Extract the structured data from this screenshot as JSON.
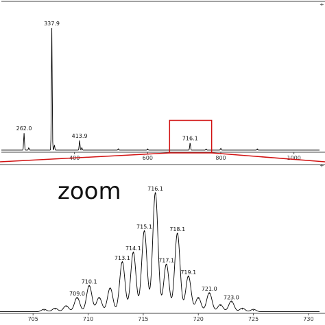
{
  "annotation": {
    "zoom_word": "zoom",
    "top_axis_unit": "+"
  },
  "colors": {
    "trace": "#000000",
    "highlight": "#d11111",
    "axis": "#444444"
  },
  "chart_data": [
    {
      "type": "line",
      "title": "",
      "xlabel": "",
      "ylabel": "",
      "xlim": [
        200,
        1070
      ],
      "ylim": [
        0,
        100
      ],
      "x_ticks": [
        400,
        600,
        800,
        1000
      ],
      "x_tick_labels": [
        "400",
        "600",
        "800",
        "1000"
      ],
      "peaks": [
        {
          "x": 262.0,
          "y": 14,
          "label": "262.0"
        },
        {
          "x": 275.0,
          "y": 2,
          "label": ""
        },
        {
          "x": 337.9,
          "y": 100,
          "label": "337.9"
        },
        {
          "x": 345.0,
          "y": 4,
          "label": ""
        },
        {
          "x": 413.9,
          "y": 8,
          "label": "413.9"
        },
        {
          "x": 420.0,
          "y": 2,
          "label": ""
        },
        {
          "x": 520.0,
          "y": 1.2,
          "label": ""
        },
        {
          "x": 600.0,
          "y": 1.0,
          "label": ""
        },
        {
          "x": 716.1,
          "y": 6,
          "label": "716.1"
        },
        {
          "x": 760.0,
          "y": 1.0,
          "label": ""
        },
        {
          "x": 800.0,
          "y": 1.5,
          "label": ""
        },
        {
          "x": 900.0,
          "y": 1.0,
          "label": ""
        }
      ],
      "highlight_box": {
        "x_range": [
          660,
          775
        ],
        "y_range": [
          0,
          25
        ]
      }
    },
    {
      "type": "line",
      "title": "",
      "xlabel": "",
      "ylabel": "",
      "xlim": [
        702,
        731
      ],
      "ylim": [
        0,
        100
      ],
      "x_ticks": [
        705,
        710,
        715,
        720,
        725,
        730
      ],
      "x_tick_labels": [
        "705",
        "710",
        "715",
        "720",
        "725",
        "730"
      ],
      "peaks": [
        {
          "x": 706.0,
          "y": 2,
          "label": ""
        },
        {
          "x": 707.0,
          "y": 3,
          "label": ""
        },
        {
          "x": 708.0,
          "y": 5,
          "label": ""
        },
        {
          "x": 709.0,
          "y": 12,
          "label": "709.0"
        },
        {
          "x": 710.1,
          "y": 22,
          "label": "710.1"
        },
        {
          "x": 711.0,
          "y": 12,
          "label": ""
        },
        {
          "x": 712.0,
          "y": 20,
          "label": ""
        },
        {
          "x": 713.1,
          "y": 42,
          "label": "713.1"
        },
        {
          "x": 714.1,
          "y": 50,
          "label": "714.1"
        },
        {
          "x": 715.1,
          "y": 68,
          "label": "715.1"
        },
        {
          "x": 716.1,
          "y": 100,
          "label": "716.1"
        },
        {
          "x": 717.1,
          "y": 40,
          "label": "717.1"
        },
        {
          "x": 718.1,
          "y": 66,
          "label": "718.1"
        },
        {
          "x": 719.1,
          "y": 30,
          "label": "719.1"
        },
        {
          "x": 720.0,
          "y": 12,
          "label": ""
        },
        {
          "x": 721.0,
          "y": 16,
          "label": "721.0"
        },
        {
          "x": 722.0,
          "y": 6,
          "label": ""
        },
        {
          "x": 723.0,
          "y": 9,
          "label": "723.0"
        },
        {
          "x": 724.0,
          "y": 3,
          "label": ""
        },
        {
          "x": 725.0,
          "y": 2,
          "label": ""
        }
      ]
    }
  ]
}
